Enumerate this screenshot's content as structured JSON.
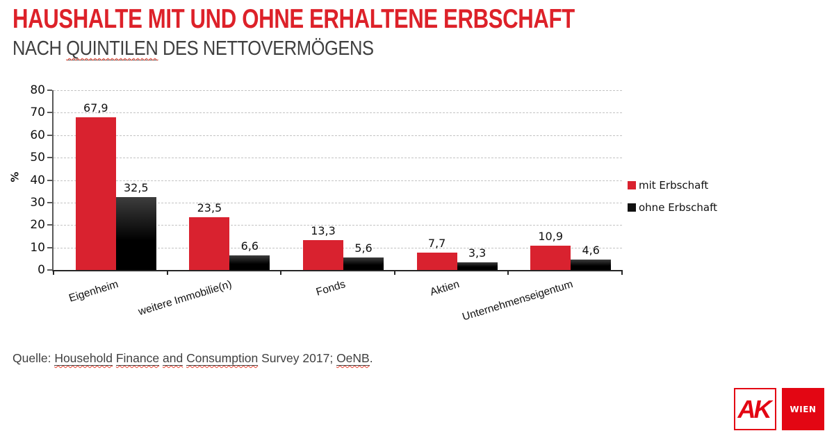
{
  "slide": {
    "title": "HAUSHALTE MIT UND OHNE ERHALTENE ERBSCHAFT",
    "subtitle_segments": [
      {
        "text": "NACH "
      },
      {
        "text": "QUINTILEN",
        "flagged": true
      },
      {
        "text": " DES NETTOVERMÖGENS"
      }
    ],
    "source_segments": [
      {
        "text": "Quelle: "
      },
      {
        "text": "Household",
        "flagged": true
      },
      {
        "text": " "
      },
      {
        "text": "Finance",
        "flagged": true
      },
      {
        "text": " "
      },
      {
        "text": "and",
        "flagged": true
      },
      {
        "text": " "
      },
      {
        "text": "Consumption",
        "flagged": true
      },
      {
        "text": " Survey 2017; "
      },
      {
        "text": "OeNB",
        "flagged": true
      },
      {
        "text": "."
      }
    ]
  },
  "chart_data": {
    "type": "bar",
    "categories": [
      "Eigenheim",
      "weitere Immobilie(n)",
      "Fonds",
      "Aktien",
      "Unternehmenseigentum"
    ],
    "series": [
      {
        "name": "mit Erbschaft",
        "color": "#d9222f",
        "values": [
          67.9,
          23.5,
          13.3,
          7.7,
          10.9
        ],
        "labels": [
          "67,9",
          "23,5",
          "13,3",
          "7,7",
          "10,9"
        ]
      },
      {
        "name": "ohne Erbschaft",
        "color": "#111111",
        "gradient": [
          "#3d3d3d",
          "#000000"
        ],
        "values": [
          32.5,
          6.6,
          5.6,
          3.3,
          4.6
        ],
        "labels": [
          "32,5",
          "6,6",
          "5,6",
          "3,3",
          "4,6"
        ]
      }
    ],
    "title": "",
    "xlabel": "",
    "ylabel": "%",
    "ylim": [
      0,
      80
    ],
    "ytick_step": 10,
    "yticks": [
      0,
      10,
      20,
      30,
      40,
      50,
      60,
      70,
      80
    ],
    "grid": "horizontal-dashed",
    "legend_position": "right"
  },
  "logo": {
    "ak_text": "AK",
    "wien_text": "WIEN",
    "color": "#e30613"
  },
  "colors": {
    "title_red": "#dd2129",
    "accent_red": "#d9222f",
    "bar_black": "#111111",
    "text_gray": "#3f3f3f",
    "grid_gray": "#c3c3c3",
    "axis_gray": "#595959"
  }
}
